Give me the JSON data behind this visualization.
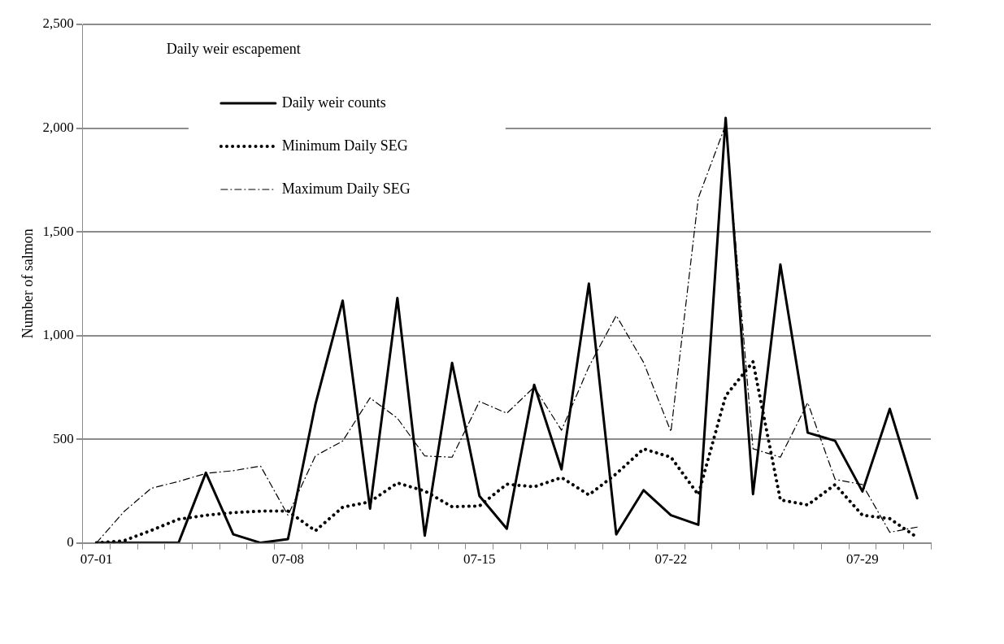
{
  "chart_data": {
    "type": "line",
    "title": "Daily weir escapement",
    "ylabel": "Number of salmon",
    "categories": [
      "07-01",
      null,
      null,
      null,
      null,
      null,
      null,
      "07-08",
      null,
      null,
      null,
      null,
      null,
      null,
      "07-15",
      null,
      null,
      null,
      null,
      null,
      null,
      "07-22",
      null,
      null,
      null,
      null,
      null,
      null,
      "07-29",
      null,
      null
    ],
    "series": [
      {
        "name": "Daily weir counts",
        "color": "#000000",
        "line_style": "solid",
        "values": [
          0,
          0,
          0,
          0,
          338,
          41,
          0,
          18,
          666,
          1168,
          165,
          1181,
          35,
          868,
          226,
          68,
          762,
          354,
          1250,
          41,
          254,
          133,
          87,
          2049,
          235,
          1342,
          531,
          492,
          248,
          646,
          215
        ]
      },
      {
        "name": "Minimum Daily SEG",
        "color": "#000000",
        "line_style": "dotted",
        "values": [
          0,
          10,
          60,
          114,
          133,
          146,
          153,
          153,
          58,
          172,
          198,
          289,
          250,
          174,
          178,
          283,
          270,
          315,
          231,
          333,
          453,
          413,
          232,
          709,
          873,
          207,
          183,
          281,
          133,
          117,
          26
        ]
      },
      {
        "name": "Maximum Daily SEG",
        "color": "#000000",
        "line_style": "dashdot",
        "values": [
          0,
          150,
          263,
          296,
          335,
          348,
          370,
          133,
          419,
          491,
          699,
          601,
          419,
          413,
          682,
          625,
          751,
          543,
          849,
          1096,
          870,
          536,
          1663,
          2016,
          454,
          413,
          676,
          306,
          281,
          51,
          76
        ]
      }
    ],
    "ylim": [
      0,
      2500
    ],
    "yticks": [
      0,
      {
        "value": 500,
        "label": "500"
      },
      {
        "value": 1000,
        "label": "1,000"
      },
      {
        "value": 1500,
        "label": "1,500"
      },
      {
        "value": 2000,
        "label": "2,000"
      },
      {
        "value": 2500,
        "label": "2,500"
      }
    ],
    "grid": "y",
    "legend": "top left",
    "marker": "none"
  }
}
